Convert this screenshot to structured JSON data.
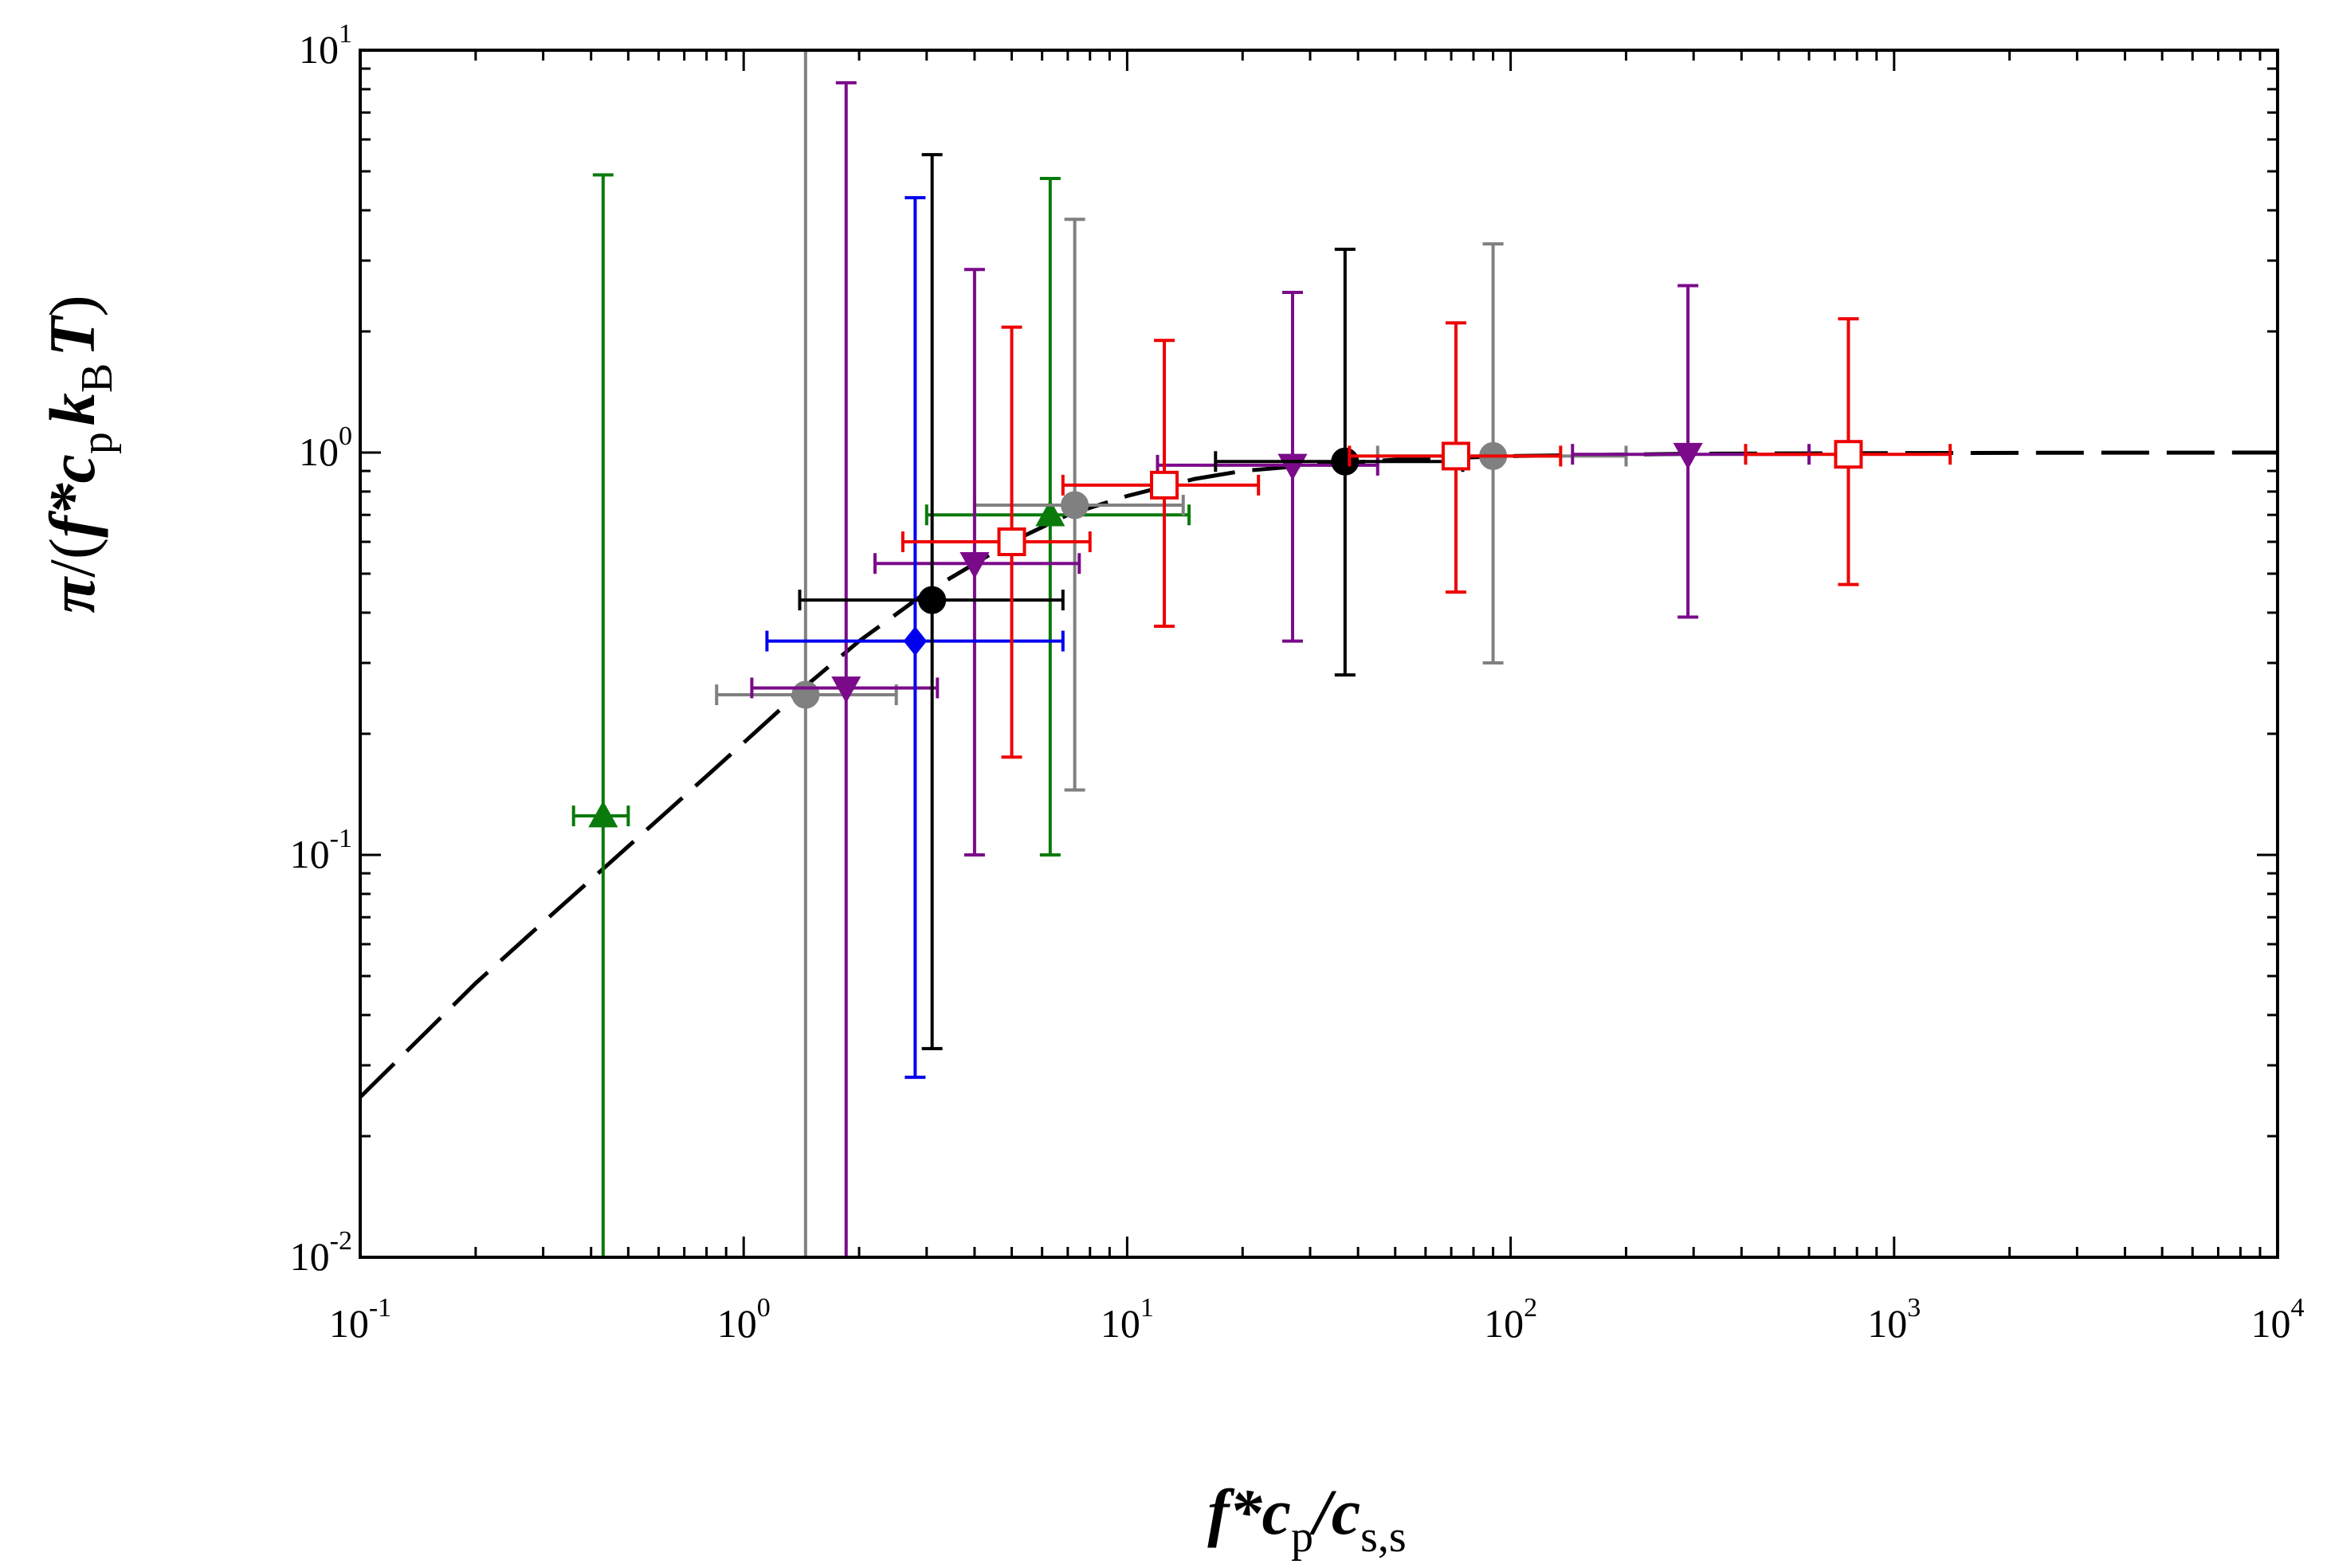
{
  "chart_data": {
    "type": "scatter",
    "xscale": "log",
    "yscale": "log",
    "xlim": [
      0.1,
      10000
    ],
    "ylim": [
      0.01,
      10
    ],
    "xlabel": {
      "main": "f*c",
      "sub_p": "p",
      "slash": "/c",
      "sub_s": "s,s"
    },
    "ylabel": {
      "pi": "π",
      "open": "/(",
      "f": "f*c",
      "sub_p": "p",
      "k": "k",
      "sub_B": "B",
      "T": "T",
      "close": ")"
    },
    "xticks": [
      {
        "base": "10",
        "exp": "-1",
        "value": 0.1
      },
      {
        "base": "10",
        "exp": "0",
        "value": 1
      },
      {
        "base": "10",
        "exp": "1",
        "value": 10
      },
      {
        "base": "10",
        "exp": "2",
        "value": 100
      },
      {
        "base": "10",
        "exp": "3",
        "value": 1000
      },
      {
        "base": "10",
        "exp": "4",
        "value": 10000
      }
    ],
    "yticks": [
      {
        "base": "10",
        "exp": "-2",
        "value": 0.01
      },
      {
        "base": "10",
        "exp": "-1",
        "value": 0.1
      },
      {
        "base": "10",
        "exp": "0",
        "value": 1
      },
      {
        "base": "10",
        "exp": "1",
        "value": 10
      }
    ],
    "model_curve": {
      "name": "theory",
      "style": "dashed",
      "color": "#000000",
      "x": [
        0.1,
        0.2,
        0.3,
        0.5,
        0.7,
        1.0,
        1.5,
        2,
        3,
        5,
        7,
        10,
        15,
        20,
        30,
        50,
        100,
        300,
        1000,
        3000,
        10000
      ],
      "y": [
        0.025,
        0.048,
        0.068,
        0.105,
        0.14,
        0.19,
        0.27,
        0.34,
        0.45,
        0.6,
        0.7,
        0.78,
        0.86,
        0.9,
        0.93,
        0.96,
        0.98,
        0.993,
        0.997,
        0.999,
        1.0
      ]
    },
    "series": [
      {
        "name": "green triangles",
        "color": "#0a7a0a",
        "marker": "triangle",
        "filled": true,
        "points": [
          {
            "x": 0.43,
            "y": 0.125,
            "xerr": [
              0.36,
              0.5
            ],
            "yerr": [
              0.0,
              4.9
            ]
          },
          {
            "x": 6.3,
            "y": 0.7,
            "xerr": [
              3.0,
              14.5
            ],
            "yerr": [
              0.1,
              4.8
            ]
          }
        ]
      },
      {
        "name": "grey circles",
        "color": "#808080",
        "marker": "circle",
        "filled": true,
        "points": [
          {
            "x": 1.45,
            "y": 0.25,
            "xerr": [
              0.85,
              2.5
            ],
            "yerr": [
              0.0,
              10.0
            ]
          },
          {
            "x": 7.3,
            "y": 0.74,
            "xerr": [
              4.0,
              14.0
            ],
            "yerr": [
              0.145,
              3.8
            ]
          },
          {
            "x": 90,
            "y": 0.98,
            "xerr": [
              45,
              200
            ],
            "yerr": [
              0.3,
              3.3
            ]
          }
        ]
      },
      {
        "name": "purple inverted triangles",
        "color": "#7b0a8a",
        "marker": "triangle-down",
        "filled": true,
        "points": [
          {
            "x": 1.85,
            "y": 0.26,
            "xerr": [
              1.05,
              3.2
            ],
            "yerr": [
              0.0,
              8.3
            ]
          },
          {
            "x": 4.0,
            "y": 0.53,
            "xerr": [
              2.2,
              7.5
            ],
            "yerr": [
              0.1,
              2.85
            ]
          },
          {
            "x": 27,
            "y": 0.93,
            "xerr": [
              12,
              45
            ],
            "yerr": [
              0.34,
              2.5
            ]
          },
          {
            "x": 290,
            "y": 0.99,
            "xerr": [
              145,
              600
            ],
            "yerr": [
              0.39,
              2.6
            ]
          }
        ]
      },
      {
        "name": "blue diamonds",
        "color": "#0000ee",
        "marker": "diamond",
        "filled": true,
        "points": [
          {
            "x": 2.8,
            "y": 0.34,
            "xerr": [
              1.15,
              6.8
            ],
            "yerr": [
              0.028,
              4.3
            ]
          }
        ]
      },
      {
        "name": "black circles",
        "color": "#000000",
        "marker": "circle",
        "filled": true,
        "points": [
          {
            "x": 3.1,
            "y": 0.43,
            "xerr": [
              1.4,
              6.8
            ],
            "yerr": [
              0.033,
              5.5
            ]
          },
          {
            "x": 37,
            "y": 0.95,
            "xerr": [
              17,
              75
            ],
            "yerr": [
              0.28,
              3.2
            ]
          }
        ]
      },
      {
        "name": "red open squares",
        "color": "#ee0000",
        "marker": "square",
        "filled": false,
        "points": [
          {
            "x": 5.0,
            "y": 0.6,
            "xerr": [
              2.6,
              8.0
            ],
            "yerr": [
              0.175,
              2.05
            ]
          },
          {
            "x": 12.5,
            "y": 0.83,
            "xerr": [
              6.8,
              22
            ],
            "yerr": [
              0.37,
              1.9
            ]
          },
          {
            "x": 72,
            "y": 0.98,
            "xerr": [
              38,
              135
            ],
            "yerr": [
              0.45,
              2.1
            ]
          },
          {
            "x": 760,
            "y": 0.99,
            "xerr": [
              410,
              1400
            ],
            "yerr": [
              0.47,
              2.15
            ]
          }
        ]
      }
    ]
  }
}
